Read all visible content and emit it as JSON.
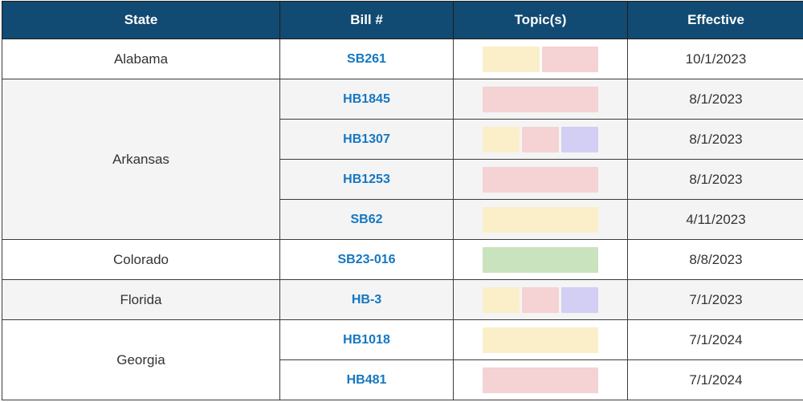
{
  "table": {
    "columns": [
      {
        "label": "State"
      },
      {
        "label": "Bill #"
      },
      {
        "label": "Topic(s)"
      },
      {
        "label": "Effective"
      }
    ],
    "topic_colors": {
      "yellow": "#faefc9",
      "pink": "#f5d2d3",
      "purple": "#d3cef3",
      "green": "#cae3bf"
    },
    "colors": {
      "header_bg": "#114a72",
      "header_text": "#ffffff",
      "bill_link": "#1577c2",
      "body_text": "#333333",
      "row_alt_bg": "#f4f4f4",
      "border": "#3b3b3b"
    },
    "groups": [
      {
        "state": "Alabama",
        "bills": [
          {
            "bill": "SB261",
            "topics": [
              "yellow",
              "pink"
            ],
            "effective": "10/1/2023"
          }
        ]
      },
      {
        "state": "Arkansas",
        "bills": [
          {
            "bill": "HB1845",
            "topics": [
              "pink"
            ],
            "effective": "8/1/2023"
          },
          {
            "bill": "HB1307",
            "topics": [
              "yellow",
              "pink",
              "purple"
            ],
            "effective": "8/1/2023"
          },
          {
            "bill": "HB1253",
            "topics": [
              "pink"
            ],
            "effective": "8/1/2023"
          },
          {
            "bill": "SB62",
            "topics": [
              "yellow"
            ],
            "effective": "4/11/2023"
          }
        ]
      },
      {
        "state": "Colorado",
        "bills": [
          {
            "bill": "SB23-016",
            "topics": [
              "green"
            ],
            "effective": "8/8/2023"
          }
        ]
      },
      {
        "state": "Florida",
        "bills": [
          {
            "bill": "HB-3",
            "topics": [
              "yellow",
              "pink",
              "purple"
            ],
            "effective": "7/1/2023"
          }
        ]
      },
      {
        "state": "Georgia",
        "bills": [
          {
            "bill": "HB1018",
            "topics": [
              "yellow"
            ],
            "effective": "7/1/2024"
          },
          {
            "bill": "HB481",
            "topics": [
              "pink"
            ],
            "effective": "7/1/2024"
          }
        ]
      }
    ]
  }
}
